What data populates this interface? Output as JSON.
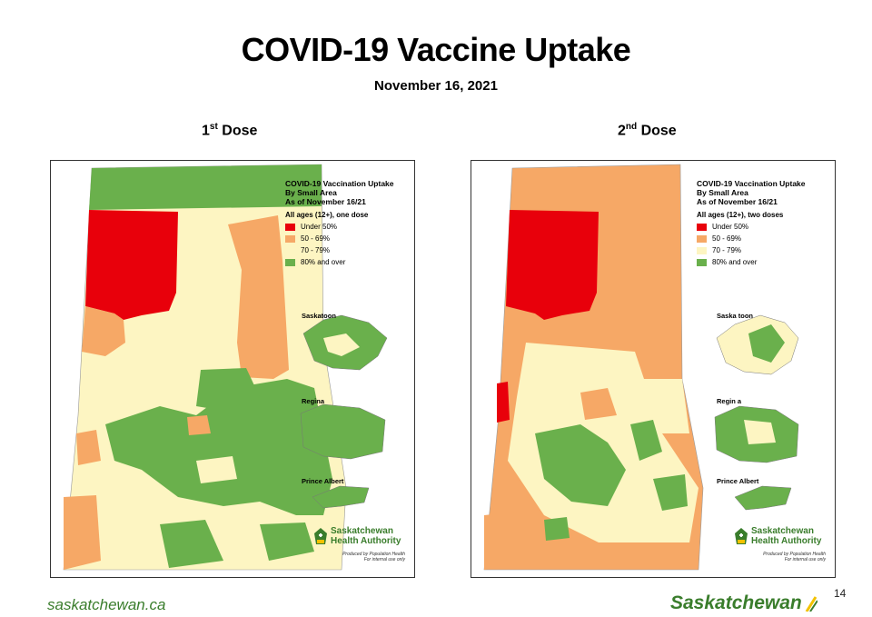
{
  "title": "COVID-19 Vaccine Uptake",
  "date": "November 16, 2021",
  "colors": {
    "under50": "#e8000b",
    "r50_69": "#f6a866",
    "r70_79": "#fdf5c2",
    "r80plus": "#6ab04c"
  },
  "panels": [
    {
      "dose_label": "1",
      "dose_sup": "st",
      "dose_word": "Dose",
      "legend_title_1": "COVID-19 Vaccination Uptake",
      "legend_title_2": "By Small Area",
      "legend_title_3": "As of November 16/21",
      "legend_subtitle": "All ages (12+), one dose",
      "legend_items": [
        "Under 50%",
        "50 - 69%",
        "70 - 79%",
        "80% and over"
      ],
      "insets": [
        "Saskatoon",
        "Regina",
        "Prince Albert"
      ],
      "logo_line1": "Saskatchewan",
      "logo_line2": "Health Authority",
      "produced_1": "Produced by Population Health",
      "produced_2": "For internal use only"
    },
    {
      "dose_label": "2",
      "dose_sup": "nd",
      "dose_word": "Dose",
      "legend_title_1": "COVID-19 Vaccination Uptake",
      "legend_title_2": "By Small Area",
      "legend_title_3": "As of November 16/21",
      "legend_subtitle": "All ages (12+), two doses",
      "legend_items": [
        "Under 50%",
        "50 - 69%",
        "70 - 79%",
        "80% and over"
      ],
      "insets": [
        "Saska toon",
        "Regin a",
        "Prince Albert"
      ],
      "logo_line1": "Saskatchewan",
      "logo_line2": "Health Authority",
      "produced_1": "Produced by Population Health",
      "produced_2": "For internal use only"
    }
  ],
  "footer_left": "saskatchewan.ca",
  "footer_right": "Saskatchewan",
  "page_number": "14"
}
